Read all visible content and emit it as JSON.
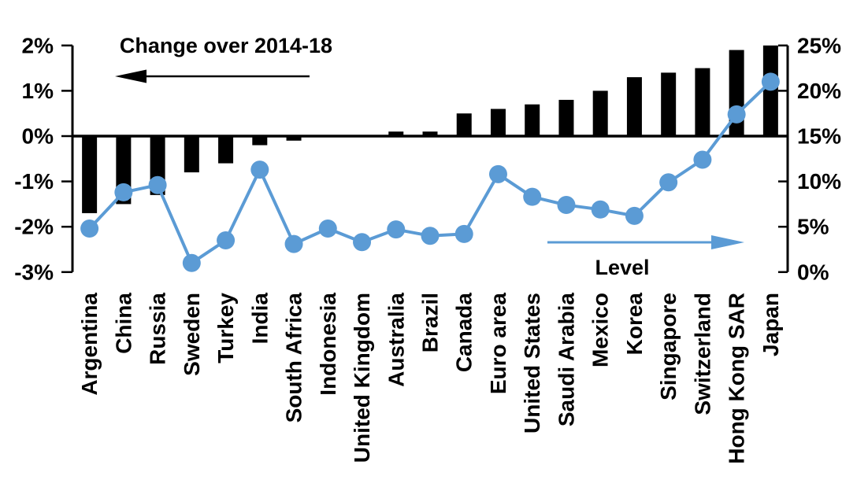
{
  "chart_data": {
    "type": "bar+line",
    "title": "",
    "categories": [
      "Argentina",
      "China",
      "Russia",
      "Sweden",
      "Turkey",
      "India",
      "South Africa",
      "Indonesia",
      "United Kingdom",
      "Australia",
      "Brazil",
      "Canada",
      "Euro area",
      "United States",
      "Saudi Arabia",
      "Mexico",
      "Korea",
      "Singapore",
      "Switzerland",
      "Hong Kong SAR",
      "Japan"
    ],
    "series": [
      {
        "name": "Change over 2014-18",
        "type": "bar",
        "axis": "left",
        "unit": "%",
        "color": "#000000",
        "values": [
          -1.7,
          -1.5,
          -1.3,
          -0.8,
          -0.6,
          -0.2,
          -0.1,
          0.0,
          0.0,
          0.1,
          0.1,
          0.5,
          0.6,
          0.7,
          0.8,
          1.0,
          1.3,
          1.4,
          1.5,
          1.9,
          2.0
        ]
      },
      {
        "name": "Level",
        "type": "line",
        "axis": "right",
        "unit": "%",
        "color": "#5b9bd5",
        "values": [
          4.8,
          8.8,
          9.6,
          1.0,
          3.5,
          11.3,
          3.1,
          4.8,
          3.3,
          4.7,
          4.0,
          4.2,
          10.8,
          8.3,
          7.4,
          6.9,
          6.2,
          9.9,
          12.4,
          17.4,
          21.0
        ]
      }
    ],
    "left_axis": {
      "tick_labels": [
        "2%",
        "1%",
        "0%",
        "-1%",
        "-2%",
        "-3%"
      ],
      "tick_values": [
        2,
        1,
        0,
        -1,
        -2,
        -3
      ],
      "min": -3,
      "max": 2
    },
    "right_axis": {
      "tick_labels": [
        "25%",
        "20%",
        "15%",
        "10%",
        "5%",
        "0%"
      ],
      "tick_values": [
        25,
        20,
        15,
        10,
        5,
        0
      ],
      "min": 0,
      "max": 25
    },
    "annotations": {
      "bar_label": "Change over 2014-18",
      "line_label": "Level"
    },
    "grid": "off",
    "legend": "annotated-arrows"
  }
}
